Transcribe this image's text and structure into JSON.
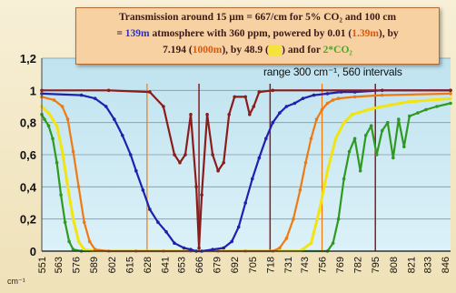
{
  "title": {
    "line1": "Transmission around 15 µm = 667/cm for 5% CO₂ and 100 cm",
    "l2_pre": "= ",
    "l2_blue": "139m",
    "l2_mid": " atmosphere with 360 ppm,  powered by 0.01 (",
    "l2_orange": "1.39m",
    "l2_end": "), by",
    "l3_pre": "7.194 (",
    "l3_orange": "1000m",
    "l3_mid": "), by 48.9 (",
    "l3_yellow": "     ",
    "l3_post": ") and for ",
    "l3_green": "2*CO₂"
  },
  "annotation": "range 300 cm⁻¹, 560 intervals",
  "x_unit": "cm⁻¹",
  "colors": {
    "red": "#8b1c1c",
    "blue": "#1f1fb0",
    "orange": "#f07a10",
    "yellow": "#f2e410",
    "green": "#2e9a1e",
    "plot_bg_top": "#bfe3ef",
    "plot_bg_bottom": "#d9f0f7"
  },
  "chart_data": {
    "type": "line",
    "xlabel": "cm⁻¹",
    "ylabel": "",
    "ylim": [
      0,
      1.2
    ],
    "yticks": [
      "0",
      "0,2",
      "0,4",
      "0,6",
      "0,8",
      "1",
      "1,2"
    ],
    "yticks_values": [
      0,
      0.2,
      0.4,
      0.6,
      0.8,
      1.0,
      1.2
    ],
    "xticks": [
      "551",
      "563",
      "576",
      "589",
      "602",
      "615",
      "628",
      "641",
      "653",
      "666",
      "679",
      "692",
      "705",
      "718",
      "731",
      "743",
      "756",
      "769",
      "782",
      "795",
      "808",
      "821",
      "833",
      "846"
    ],
    "xlim": [
      551,
      850
    ],
    "legend": "none",
    "series": [
      {
        "name": "139m",
        "color_key": "red",
        "x": [
          551,
          600,
          630,
          640,
          648,
          652,
          656,
          660,
          664,
          666,
          668,
          672,
          676,
          680,
          684,
          688,
          692,
          700,
          703,
          706,
          710,
          720,
          850
        ],
        "y": [
          1.0,
          1.0,
          0.99,
          0.9,
          0.6,
          0.55,
          0.6,
          0.85,
          0.4,
          0.02,
          0.35,
          0.85,
          0.6,
          0.5,
          0.55,
          0.85,
          0.96,
          0.96,
          0.85,
          0.9,
          0.99,
          1.0,
          1.0
        ]
      },
      {
        "name": "1.39m",
        "color_key": "blue",
        "x": [
          551,
          580,
          590,
          598,
          604,
          610,
          616,
          620,
          625,
          630,
          636,
          642,
          648,
          655,
          660,
          664,
          668,
          676,
          684,
          690,
          695,
          700,
          705,
          710,
          715,
          720,
          725,
          730,
          736,
          742,
          750,
          760,
          770,
          780,
          800,
          850
        ],
        "y": [
          0.98,
          0.97,
          0.95,
          0.9,
          0.82,
          0.72,
          0.6,
          0.5,
          0.38,
          0.26,
          0.18,
          0.12,
          0.05,
          0.02,
          0.01,
          0.0,
          0.0,
          0.01,
          0.02,
          0.06,
          0.15,
          0.3,
          0.45,
          0.58,
          0.7,
          0.8,
          0.86,
          0.9,
          0.92,
          0.95,
          0.97,
          0.98,
          0.99,
          0.99,
          1.0,
          1.0
        ]
      },
      {
        "name": "1000m",
        "color_key": "orange",
        "x": [
          551,
          560,
          566,
          570,
          574,
          578,
          582,
          586,
          590,
          600,
          620,
          640,
          660,
          680,
          700,
          720,
          725,
          730,
          735,
          740,
          744,
          748,
          752,
          756,
          760,
          764,
          768,
          780,
          800,
          850
        ],
        "y": [
          0.96,
          0.94,
          0.9,
          0.82,
          0.62,
          0.4,
          0.18,
          0.06,
          0.01,
          0.0,
          0.0,
          0.0,
          0.0,
          0.0,
          0.0,
          0.0,
          0.02,
          0.08,
          0.2,
          0.38,
          0.55,
          0.7,
          0.82,
          0.88,
          0.92,
          0.94,
          0.95,
          0.96,
          0.97,
          0.98
        ]
      },
      {
        "name": "48.9",
        "color_key": "yellow",
        "x": [
          551,
          556,
          562,
          566,
          570,
          574,
          578,
          582,
          590,
          700,
          740,
          748,
          754,
          760,
          766,
          772,
          778,
          790,
          800,
          820,
          850
        ],
        "y": [
          0.9,
          0.86,
          0.78,
          0.62,
          0.4,
          0.2,
          0.06,
          0.01,
          0.0,
          0.0,
          0.0,
          0.05,
          0.25,
          0.5,
          0.7,
          0.8,
          0.85,
          0.88,
          0.9,
          0.93,
          0.95
        ]
      },
      {
        "name": "2*CO₂",
        "color_key": "green",
        "x": [
          551,
          553,
          556,
          559,
          562,
          565,
          568,
          571,
          574,
          580,
          760,
          764,
          768,
          772,
          776,
          780,
          784,
          788,
          792,
          796,
          800,
          804,
          808,
          812,
          816,
          820,
          826,
          832,
          840,
          850
        ],
        "y": [
          0.85,
          0.82,
          0.78,
          0.7,
          0.55,
          0.35,
          0.18,
          0.06,
          0.01,
          0.0,
          0.0,
          0.05,
          0.2,
          0.45,
          0.62,
          0.7,
          0.5,
          0.72,
          0.78,
          0.6,
          0.75,
          0.8,
          0.58,
          0.82,
          0.65,
          0.84,
          0.86,
          0.88,
          0.9,
          0.92
        ]
      }
    ]
  }
}
